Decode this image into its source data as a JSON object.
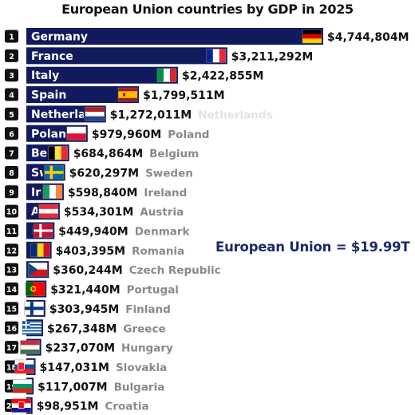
{
  "chart_data": {
    "type": "bar",
    "orientation": "horizontal",
    "title": "European Union countries by GDP in 2025",
    "annotation": "European Union = $19.99T",
    "unit": "million USD",
    "bar_color": "#111a5c",
    "ranks": [
      1,
      2,
      3,
      4,
      5,
      6,
      7,
      8,
      9,
      10,
      11,
      12,
      13,
      14,
      15,
      16,
      17,
      18,
      19,
      20
    ],
    "categories": [
      "Germany",
      "France",
      "Italy",
      "Spain",
      "Netherlands",
      "Poland",
      "Belgium",
      "Sweden",
      "Ireland",
      "Austria",
      "Denmark",
      "Romania",
      "Czech Republic",
      "Portugal",
      "Finland",
      "Greece",
      "Hungary",
      "Slovakia",
      "Bulgaria",
      "Croatia"
    ],
    "values": [
      4744804,
      3211292,
      2422855,
      1799511,
      1272011,
      979960,
      684864,
      620297,
      598840,
      534301,
      449940,
      403395,
      360244,
      321440,
      303945,
      267348,
      237070,
      147031,
      117007,
      98951
    ],
    "value_labels": [
      "$4,744,804M",
      "$3,211,292M",
      "$2,422,855M",
      "$1,799,511M",
      "$1,272,011M",
      "$979,960M",
      "$684,864M",
      "$620,297M",
      "$598,840M",
      "$534,301M",
      "$449,940M",
      "$403,395M",
      "$360,244M",
      "$321,440M",
      "$303,945M",
      "$267,348M",
      "$237,070M",
      "$147,031M",
      "$117,007M",
      "$98,951M"
    ],
    "flag_icons": [
      "flag-germany-icon",
      "flag-france-icon",
      "flag-italy-icon",
      "flag-spain-icon",
      "flag-netherlands-icon",
      "flag-poland-icon",
      "flag-belgium-icon",
      "flag-sweden-icon",
      "flag-ireland-icon",
      "flag-austria-icon",
      "flag-denmark-icon",
      "flag-romania-icon",
      "flag-czech-republic-icon",
      "flag-portugal-icon",
      "flag-finland-icon",
      "flag-greece-icon",
      "flag-hungary-icon",
      "flag-slovakia-icon",
      "flag-bulgaria-icon",
      "flag-croatia-icon"
    ]
  }
}
